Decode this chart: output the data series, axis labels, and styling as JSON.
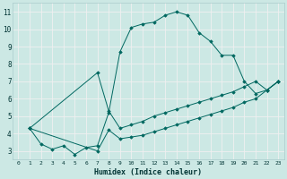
{
  "xlabel": "Humidex (Indice chaleur)",
  "bg_color": "#cce8e4",
  "grid_color": "#f0f0f0",
  "line_color": "#006860",
  "xlim": [
    -0.5,
    23.5
  ],
  "ylim": [
    2.5,
    11.5
  ],
  "xticks": [
    0,
    1,
    2,
    3,
    4,
    5,
    6,
    7,
    8,
    9,
    10,
    11,
    12,
    13,
    14,
    15,
    16,
    17,
    18,
    19,
    20,
    21,
    22,
    23
  ],
  "yticks": [
    3,
    4,
    5,
    6,
    7,
    8,
    9,
    10,
    11
  ],
  "series": [
    {
      "x": [
        1,
        2,
        3,
        4,
        5,
        6,
        7,
        8,
        9,
        10,
        11,
        12,
        13,
        14,
        15,
        16,
        17,
        18,
        19,
        20,
        21,
        22,
        23
      ],
      "y": [
        4.3,
        3.4,
        3.1,
        3.3,
        2.8,
        3.2,
        3.3,
        5.2,
        8.7,
        10.1,
        10.3,
        10.4,
        10.8,
        11.0,
        10.8,
        9.8,
        9.3,
        8.5,
        8.5,
        7.0,
        6.3,
        6.5,
        7.0
      ]
    },
    {
      "x": [
        1,
        7,
        8,
        9,
        10,
        11,
        12,
        13,
        14,
        15,
        16,
        17,
        18,
        19,
        20,
        21,
        22,
        23
      ],
      "y": [
        4.3,
        7.5,
        5.3,
        4.3,
        4.5,
        4.7,
        5.0,
        5.2,
        5.4,
        5.6,
        5.8,
        6.0,
        6.2,
        6.4,
        6.7,
        7.0,
        6.5,
        7.0
      ]
    },
    {
      "x": [
        1,
        7,
        8,
        9,
        10,
        11,
        12,
        13,
        14,
        15,
        16,
        17,
        18,
        19,
        20,
        21,
        22,
        23
      ],
      "y": [
        4.3,
        3.0,
        4.2,
        3.7,
        3.8,
        3.9,
        4.1,
        4.3,
        4.5,
        4.7,
        4.9,
        5.1,
        5.3,
        5.5,
        5.8,
        6.0,
        6.5,
        7.0
      ]
    }
  ]
}
